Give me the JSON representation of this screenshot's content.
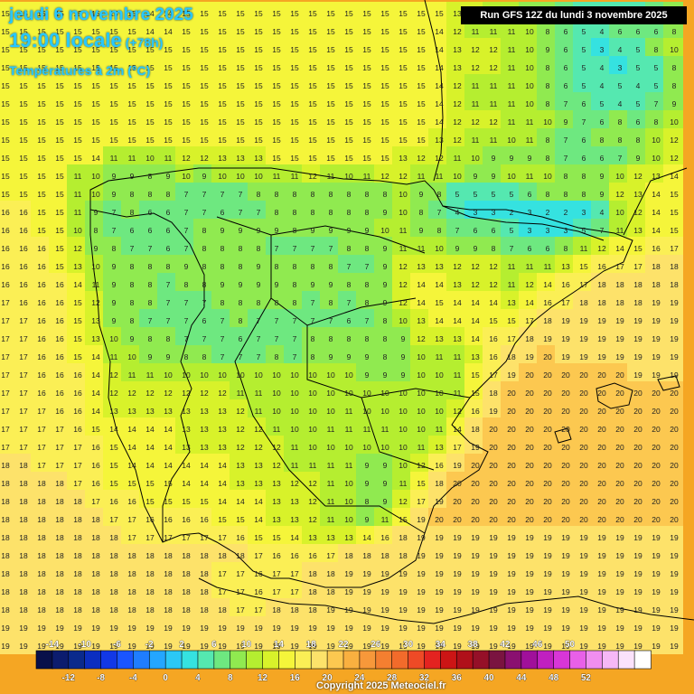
{
  "header": {
    "date_line": "jeudi 6 novembre 2025",
    "time_line": "19:00 locale",
    "lead_time": "(+78h)",
    "variable": "Températures à 2m (°C)",
    "run_info": "Run GFS 12Z du lundi 3 novembre 2025"
  },
  "footer": {
    "copyright": "Copyright 2025 Meteociel.fr"
  },
  "legend": {
    "colors": [
      "#08104a",
      "#0c1c6e",
      "#0a2a8c",
      "#0b2ec0",
      "#1238e6",
      "#1a55ff",
      "#1f7dff",
      "#24a6ff",
      "#2bc8f5",
      "#35e2e0",
      "#55e8b0",
      "#6ee880",
      "#90ea50",
      "#b5ee30",
      "#d8f22a",
      "#f5f53a",
      "#fbef55",
      "#fde26a",
      "#fcc850",
      "#f9b040",
      "#f7983a",
      "#f47f30",
      "#f26b2b",
      "#ee4a26",
      "#e42320",
      "#cc1515",
      "#b0101a",
      "#951028",
      "#7a1440",
      "#8a1070",
      "#a0109a",
      "#c020c0",
      "#d836d8",
      "#e860e8",
      "#f08ef0",
      "#f6b8f6",
      "#fbe2fb",
      "#ffffff"
    ],
    "top_labels": [
      "-14",
      "-10",
      "-6",
      "-2",
      "2",
      "6",
      "10",
      "14",
      "18",
      "22",
      "26",
      "30",
      "34",
      "38",
      "42",
      "46",
      "50"
    ],
    "bottom_labels": [
      "-12",
      "-8",
      "-4",
      "0",
      "4",
      "8",
      "12",
      "16",
      "20",
      "24",
      "28",
      "32",
      "36",
      "40",
      "44",
      "48",
      "52"
    ]
  },
  "chart_data": {
    "type": "heatmap",
    "title": "Températures à 2m (°C)",
    "grid_note": "Point values in °C, approximated, sampled every ~20px",
    "values": [
      [
        15,
        15,
        15,
        15,
        15,
        15,
        15,
        15,
        14,
        14,
        15,
        15,
        15,
        15,
        15,
        15,
        15,
        15,
        15,
        15,
        15,
        15,
        15,
        15,
        15,
        13,
        12,
        11,
        11,
        9,
        8,
        7,
        5,
        5,
        5,
        5,
        7,
        8
      ],
      [
        15,
        15,
        15,
        15,
        15,
        15,
        15,
        15,
        14,
        14,
        15,
        15,
        15,
        15,
        15,
        15,
        15,
        15,
        15,
        15,
        15,
        15,
        15,
        15,
        14,
        12,
        11,
        11,
        11,
        10,
        8,
        6,
        5,
        4,
        6,
        6,
        6,
        8
      ],
      [
        15,
        15,
        15,
        15,
        15,
        15,
        15,
        15,
        15,
        15,
        15,
        15,
        15,
        15,
        15,
        15,
        15,
        15,
        15,
        15,
        15,
        15,
        15,
        15,
        14,
        13,
        12,
        12,
        11,
        10,
        9,
        6,
        5,
        3,
        4,
        5,
        8,
        10
      ],
      [
        15,
        15,
        15,
        15,
        15,
        15,
        15,
        15,
        15,
        15,
        15,
        15,
        15,
        15,
        15,
        15,
        15,
        15,
        15,
        15,
        15,
        15,
        15,
        15,
        14,
        13,
        12,
        12,
        11,
        10,
        8,
        6,
        5,
        4,
        3,
        5,
        5,
        8
      ],
      [
        15,
        15,
        15,
        15,
        15,
        15,
        15,
        15,
        15,
        15,
        15,
        15,
        15,
        15,
        15,
        15,
        15,
        15,
        15,
        15,
        15,
        15,
        15,
        15,
        14,
        12,
        11,
        11,
        11,
        10,
        8,
        6,
        5,
        4,
        5,
        4,
        5,
        8
      ],
      [
        15,
        15,
        15,
        15,
        15,
        15,
        15,
        15,
        15,
        15,
        15,
        15,
        15,
        15,
        15,
        15,
        15,
        15,
        15,
        15,
        15,
        15,
        15,
        15,
        14,
        12,
        11,
        11,
        11,
        10,
        8,
        7,
        6,
        5,
        4,
        5,
        7,
        9
      ],
      [
        15,
        15,
        15,
        15,
        15,
        15,
        15,
        15,
        15,
        15,
        15,
        15,
        15,
        15,
        15,
        15,
        15,
        15,
        15,
        15,
        15,
        15,
        15,
        15,
        14,
        12,
        12,
        12,
        11,
        11,
        10,
        9,
        7,
        6,
        8,
        6,
        8,
        10
      ],
      [
        15,
        15,
        15,
        15,
        15,
        15,
        15,
        15,
        15,
        15,
        15,
        15,
        15,
        15,
        15,
        15,
        15,
        15,
        15,
        15,
        15,
        15,
        15,
        15,
        13,
        12,
        11,
        11,
        10,
        11,
        8,
        7,
        6,
        8,
        8,
        8,
        10,
        12
      ],
      [
        15,
        15,
        15,
        15,
        15,
        14,
        11,
        11,
        10,
        11,
        12,
        12,
        13,
        13,
        13,
        15,
        15,
        15,
        15,
        15,
        15,
        15,
        13,
        12,
        12,
        11,
        10,
        9,
        9,
        9,
        8,
        7,
        6,
        6,
        7,
        9,
        10,
        12
      ],
      [
        15,
        15,
        15,
        15,
        11,
        10,
        9,
        9,
        8,
        9,
        10,
        9,
        10,
        10,
        10,
        11,
        11,
        12,
        11,
        10,
        11,
        12,
        12,
        11,
        11,
        10,
        9,
        9,
        10,
        11,
        10,
        8,
        8,
        9,
        10,
        12,
        13,
        14
      ],
      [
        15,
        15,
        15,
        15,
        11,
        10,
        9,
        8,
        8,
        8,
        7,
        7,
        7,
        7,
        8,
        8,
        8,
        8,
        8,
        8,
        8,
        8,
        10,
        9,
        8,
        5,
        5,
        5,
        5,
        6,
        8,
        8,
        8,
        9,
        12,
        13,
        14,
        15
      ],
      [
        16,
        16,
        15,
        15,
        11,
        9,
        7,
        8,
        6,
        6,
        7,
        7,
        6,
        7,
        7,
        8,
        8,
        8,
        8,
        8,
        8,
        9,
        10,
        8,
        7,
        4,
        3,
        3,
        2,
        3,
        2,
        2,
        3,
        4,
        10,
        12,
        14,
        15
      ],
      [
        16,
        16,
        15,
        15,
        10,
        8,
        7,
        6,
        6,
        6,
        7,
        8,
        9,
        9,
        9,
        9,
        8,
        9,
        9,
        9,
        9,
        10,
        11,
        9,
        8,
        7,
        6,
        6,
        5,
        3,
        3,
        3,
        5,
        7,
        11,
        13,
        14,
        15
      ],
      [
        16,
        16,
        16,
        15,
        12,
        9,
        8,
        7,
        7,
        6,
        7,
        8,
        8,
        8,
        8,
        7,
        7,
        7,
        7,
        8,
        8,
        9,
        11,
        11,
        10,
        9,
        9,
        8,
        7,
        6,
        6,
        8,
        11,
        12,
        14,
        15,
        16,
        17
      ],
      [
        16,
        16,
        16,
        15,
        13,
        10,
        9,
        8,
        8,
        8,
        9,
        8,
        8,
        8,
        9,
        8,
        8,
        8,
        8,
        7,
        7,
        9,
        12,
        13,
        13,
        12,
        12,
        12,
        11,
        11,
        11,
        13,
        15,
        16,
        17,
        17,
        18,
        18
      ],
      [
        16,
        16,
        16,
        16,
        14,
        11,
        9,
        8,
        8,
        7,
        8,
        8,
        9,
        9,
        9,
        9,
        8,
        9,
        9,
        8,
        8,
        9,
        12,
        14,
        14,
        13,
        12,
        12,
        11,
        12,
        14,
        16,
        17,
        18,
        18,
        18,
        18,
        18
      ],
      [
        17,
        16,
        16,
        16,
        15,
        12,
        9,
        8,
        8,
        7,
        7,
        7,
        8,
        8,
        8,
        8,
        8,
        7,
        8,
        7,
        8,
        9,
        12,
        14,
        15,
        14,
        14,
        14,
        13,
        14,
        16,
        17,
        18,
        18,
        18,
        18,
        19,
        19
      ],
      [
        17,
        17,
        16,
        16,
        15,
        13,
        9,
        8,
        7,
        7,
        7,
        6,
        7,
        8,
        7,
        7,
        7,
        7,
        7,
        6,
        7,
        8,
        10,
        13,
        14,
        14,
        14,
        15,
        15,
        17,
        18,
        19,
        19,
        19,
        19,
        19,
        19,
        19
      ],
      [
        17,
        17,
        16,
        16,
        15,
        13,
        10,
        9,
        8,
        8,
        7,
        7,
        7,
        6,
        7,
        7,
        7,
        8,
        8,
        8,
        8,
        8,
        9,
        12,
        13,
        13,
        14,
        16,
        17,
        18,
        19,
        19,
        19,
        19,
        19,
        19,
        19,
        19
      ],
      [
        17,
        17,
        16,
        16,
        15,
        14,
        11,
        10,
        9,
        9,
        8,
        8,
        7,
        7,
        7,
        8,
        7,
        8,
        9,
        9,
        9,
        8,
        9,
        10,
        11,
        11,
        13,
        16,
        18,
        19,
        20,
        19,
        19,
        19,
        19,
        19,
        19,
        19
      ],
      [
        17,
        17,
        16,
        16,
        16,
        14,
        12,
        11,
        11,
        10,
        10,
        10,
        10,
        10,
        10,
        10,
        10,
        10,
        10,
        10,
        9,
        9,
        9,
        10,
        10,
        11,
        15,
        17,
        19,
        20,
        20,
        20,
        20,
        20,
        20,
        19,
        19,
        19
      ],
      [
        17,
        17,
        16,
        16,
        16,
        14,
        12,
        12,
        12,
        12,
        12,
        12,
        12,
        11,
        11,
        10,
        10,
        10,
        10,
        10,
        10,
        10,
        10,
        10,
        10,
        11,
        15,
        18,
        20,
        20,
        20,
        20,
        20,
        20,
        20,
        20,
        20,
        20
      ],
      [
        17,
        17,
        17,
        16,
        16,
        14,
        13,
        13,
        13,
        13,
        13,
        13,
        13,
        12,
        11,
        10,
        10,
        10,
        10,
        11,
        10,
        10,
        10,
        10,
        10,
        12,
        16,
        19,
        20,
        20,
        20,
        20,
        20,
        20,
        20,
        20,
        20,
        20
      ],
      [
        17,
        17,
        17,
        17,
        16,
        15,
        14,
        14,
        14,
        14,
        13,
        13,
        13,
        12,
        12,
        11,
        10,
        10,
        11,
        11,
        11,
        11,
        10,
        10,
        11,
        14,
        18,
        20,
        20,
        20,
        20,
        20,
        20,
        20,
        20,
        20,
        20,
        20
      ],
      [
        17,
        17,
        17,
        17,
        17,
        16,
        15,
        14,
        14,
        14,
        13,
        13,
        13,
        12,
        12,
        12,
        11,
        10,
        10,
        10,
        10,
        10,
        10,
        11,
        13,
        17,
        19,
        20,
        20,
        20,
        20,
        20,
        20,
        20,
        20,
        20,
        20,
        20
      ],
      [
        18,
        18,
        17,
        17,
        17,
        16,
        15,
        14,
        14,
        14,
        14,
        14,
        14,
        13,
        13,
        12,
        11,
        11,
        11,
        11,
        9,
        9,
        10,
        12,
        16,
        19,
        20,
        20,
        20,
        20,
        20,
        20,
        20,
        20,
        20,
        20,
        20,
        20
      ],
      [
        18,
        18,
        18,
        18,
        17,
        16,
        15,
        15,
        15,
        15,
        14,
        14,
        14,
        13,
        13,
        13,
        12,
        12,
        11,
        10,
        9,
        9,
        11,
        15,
        18,
        20,
        20,
        20,
        20,
        20,
        20,
        20,
        20,
        20,
        20,
        20,
        20,
        20
      ],
      [
        18,
        18,
        18,
        18,
        18,
        17,
        16,
        16,
        15,
        15,
        15,
        15,
        14,
        14,
        14,
        13,
        13,
        12,
        11,
        10,
        8,
        9,
        12,
        17,
        19,
        20,
        20,
        20,
        20,
        20,
        20,
        20,
        20,
        20,
        20,
        20,
        20,
        20
      ],
      [
        18,
        18,
        18,
        18,
        18,
        18,
        17,
        17,
        16,
        16,
        16,
        16,
        15,
        15,
        14,
        13,
        13,
        12,
        11,
        10,
        9,
        11,
        15,
        19,
        20,
        20,
        20,
        20,
        20,
        20,
        20,
        20,
        20,
        20,
        20,
        20,
        20,
        20
      ],
      [
        18,
        18,
        18,
        18,
        18,
        18,
        18,
        17,
        17,
        17,
        17,
        17,
        17,
        16,
        15,
        15,
        14,
        13,
        13,
        13,
        14,
        16,
        18,
        19,
        19,
        19,
        19,
        19,
        19,
        19,
        19,
        19,
        19,
        19,
        19,
        19,
        19,
        19
      ],
      [
        18,
        18,
        18,
        18,
        18,
        18,
        18,
        18,
        18,
        18,
        18,
        18,
        18,
        18,
        17,
        16,
        16,
        16,
        17,
        18,
        18,
        18,
        18,
        19,
        19,
        19,
        19,
        19,
        19,
        19,
        19,
        19,
        19,
        19,
        19,
        19,
        19,
        19
      ],
      [
        18,
        18,
        18,
        18,
        18,
        18,
        18,
        18,
        18,
        18,
        18,
        18,
        17,
        17,
        16,
        17,
        17,
        18,
        18,
        19,
        19,
        19,
        19,
        19,
        19,
        19,
        19,
        19,
        19,
        19,
        19,
        19,
        19,
        19,
        19,
        19,
        19,
        19
      ],
      [
        18,
        18,
        18,
        18,
        18,
        18,
        18,
        18,
        18,
        18,
        18,
        18,
        17,
        17,
        16,
        17,
        17,
        18,
        18,
        19,
        19,
        19,
        19,
        19,
        19,
        19,
        19,
        19,
        19,
        19,
        19,
        19,
        19,
        19,
        19,
        19,
        19,
        19
      ],
      [
        18,
        18,
        18,
        18,
        18,
        18,
        18,
        18,
        18,
        18,
        18,
        18,
        18,
        17,
        17,
        18,
        18,
        18,
        19,
        19,
        19,
        19,
        19,
        19,
        19,
        19,
        19,
        19,
        19,
        19,
        19,
        19,
        19,
        19,
        19,
        19,
        19,
        19
      ],
      [
        19,
        19,
        19,
        19,
        19,
        19,
        19,
        19,
        19,
        19,
        19,
        19,
        19,
        19,
        19,
        19,
        19,
        19,
        19,
        19,
        19,
        19,
        19,
        19,
        19,
        19,
        19,
        19,
        19,
        19,
        19,
        19,
        19,
        19,
        19,
        19,
        19,
        19
      ],
      [
        19,
        19,
        19,
        19,
        19,
        19,
        19,
        19,
        19,
        19,
        19,
        19,
        19,
        19,
        19,
        19,
        19,
        19,
        19,
        19,
        19,
        19,
        19,
        19,
        19,
        19,
        19,
        19,
        19,
        19,
        19,
        19,
        19,
        19,
        19,
        19,
        19,
        19
      ]
    ]
  }
}
